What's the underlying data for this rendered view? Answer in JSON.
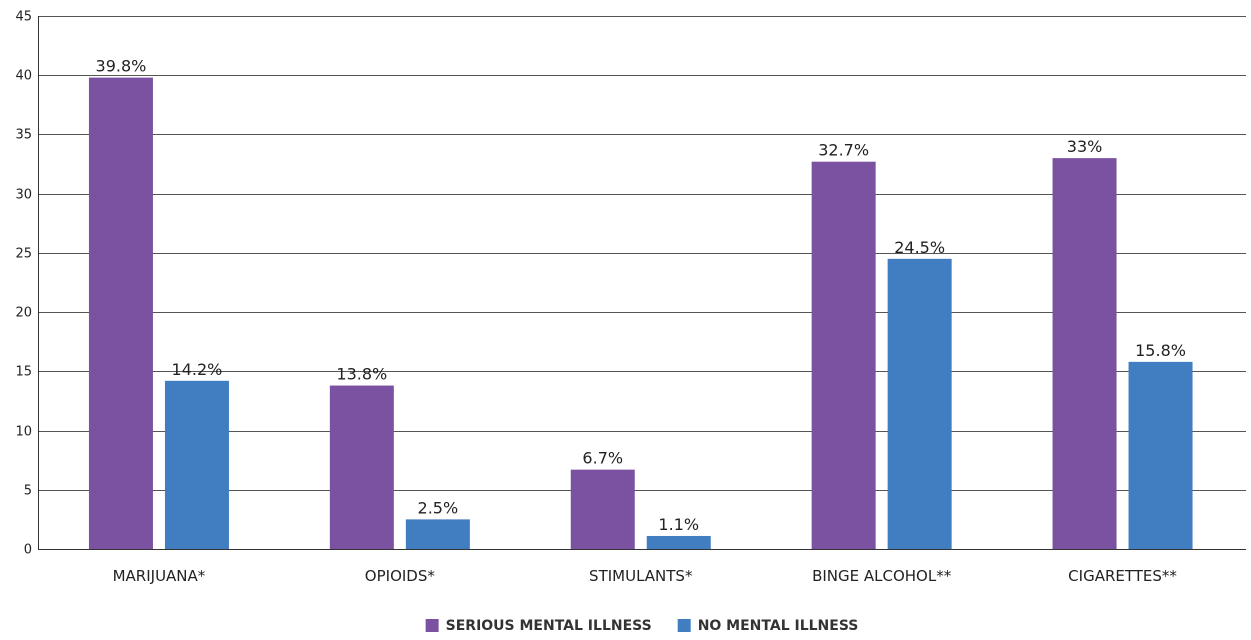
{
  "chart_data": {
    "type": "bar",
    "categories": [
      "MARIJUANA*",
      "OPIOIDS*",
      "STIMULANTS*",
      "BINGE ALCOHOL**",
      "CIGARETTES**"
    ],
    "series": [
      {
        "name": "SERIOUS MENTAL ILLNESS",
        "color": "#7b52a1",
        "values": [
          39.8,
          13.8,
          6.7,
          32.7,
          33
        ],
        "labels": [
          "39.8%",
          "13.8%",
          "6.7%",
          "32.7%",
          "33%"
        ]
      },
      {
        "name": "NO MENTAL ILLNESS",
        "color": "#417dc1",
        "values": [
          14.2,
          2.5,
          1.1,
          24.5,
          15.8
        ],
        "labels": [
          "14.2%",
          "2.5%",
          "1.1%",
          "24.5%",
          "15.8%"
        ]
      }
    ],
    "yticks": [
      "0",
      "5",
      "10",
      "15",
      "20",
      "25",
      "30",
      "35",
      "40",
      "45"
    ],
    "ylim": [
      0,
      45
    ],
    "grid": true,
    "legend": "bottom-center"
  }
}
